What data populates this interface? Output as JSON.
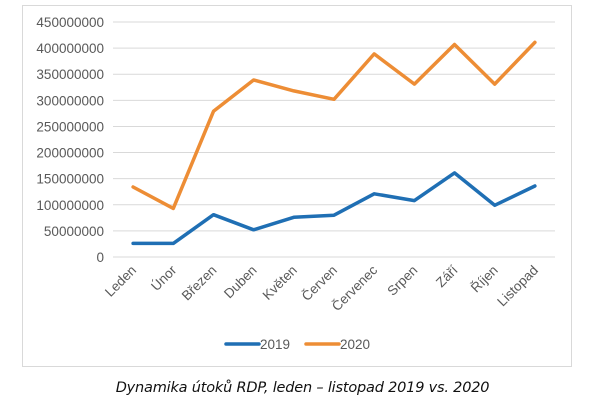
{
  "chart_data": {
    "type": "line",
    "title": "",
    "xlabel": "",
    "ylabel": "",
    "ylim": [
      0,
      450000000
    ],
    "y_ticks": [
      "0",
      "50000000",
      "100000000",
      "150000000",
      "200000000",
      "250000000",
      "300000000",
      "350000000",
      "400000000",
      "450000000"
    ],
    "y_tick_values": [
      0,
      50000000,
      100000000,
      150000000,
      200000000,
      250000000,
      300000000,
      350000000,
      400000000,
      450000000
    ],
    "grid": true,
    "legend_position": "bottom",
    "categories": [
      "Leden",
      "Únor",
      "Březen",
      "Duben",
      "Květen",
      "Červen",
      "Červenec",
      "Srpen",
      "Září",
      "Říjen",
      "Listopad"
    ],
    "series": [
      {
        "name": "2019",
        "color": "#1f6fb4",
        "values": [
          26000000,
          26000000,
          81000000,
          52000000,
          76000000,
          80000000,
          121000000,
          108000000,
          161000000,
          99000000,
          136000000
        ]
      },
      {
        "name": "2020",
        "color": "#ed8d35",
        "values": [
          134000000,
          93000000,
          279000000,
          339000000,
          318000000,
          302000000,
          389000000,
          331000000,
          407000000,
          331000000,
          411000000
        ]
      }
    ]
  },
  "caption": "Dynamika útoků RDP, leden – listopad 2019 vs. 2020"
}
